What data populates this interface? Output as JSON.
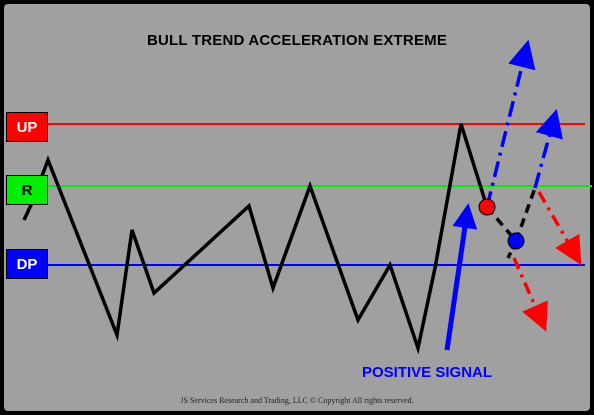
{
  "title": "BULL TREND ACCELERATION EXTREME",
  "labels": {
    "up": "UP",
    "r": "R",
    "dp": "DP"
  },
  "signal_label": "POSITIVE SIGNAL",
  "footer": "JS Services Research  and Trading, LLC © Copyright          All rights reserved.",
  "colors": {
    "background": "#a0a0a0",
    "up_line": "#ff0000",
    "r_line": "#00ee00",
    "dp_line": "#0000ff",
    "price": "#000000",
    "red_marker": "#ff0000",
    "blue_marker": "#0000ff"
  }
}
